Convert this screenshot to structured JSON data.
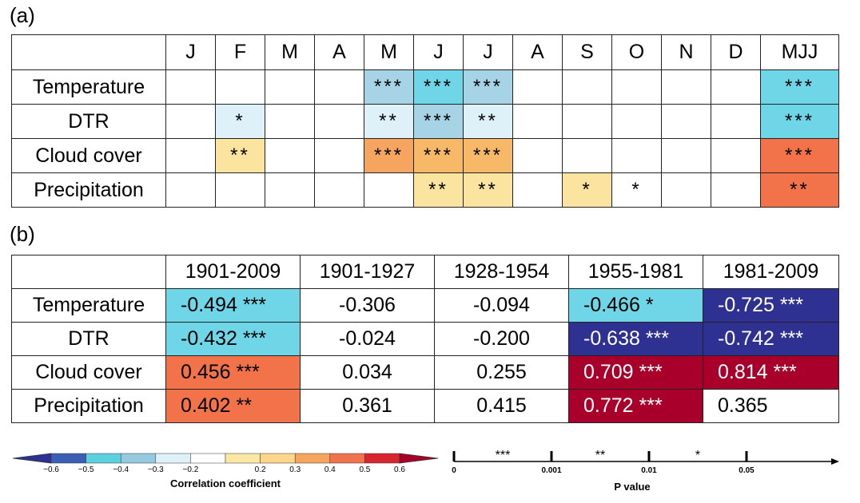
{
  "panel_a_label": "(a)",
  "panel_b_label": "(b)",
  "colors": {
    "neg_0.6": "#2e3192",
    "neg_0.5": "#3b5fb5",
    "neg_0.4": "#5bd1e0",
    "neg_0.3": "#96c9e0",
    "neg_0.2": "#dff1f8",
    "zero": "#ffffff",
    "pos_0.2": "#fbe7a3",
    "pos_0.3": "#fbd58a",
    "pos_0.4": "#f4a55e",
    "pos_0.5": "#f0734c",
    "pos_0.6": "#a8002a"
  },
  "chart_data": [
    {
      "type": "table",
      "panel": "(a)",
      "columns": [
        "J",
        "F",
        "M",
        "A",
        "M",
        "J",
        "J",
        "A",
        "S",
        "O",
        "N",
        "D",
        "MJJ"
      ],
      "rows": [
        {
          "label": "Temperature",
          "cells": [
            "",
            "",
            "",
            "",
            "***",
            "***",
            "***",
            "",
            "",
            "",
            "",
            "",
            "***"
          ],
          "colors": [
            "",
            "",
            "",
            "",
            "#a6d4e6",
            "#6ed6e6",
            "#a6d4e6",
            "",
            "",
            "",
            "",
            "",
            "#6ed6e6"
          ]
        },
        {
          "label": "DTR",
          "cells": [
            "",
            "*",
            "",
            "",
            "**",
            "***",
            "**",
            "",
            "",
            "",
            "",
            "",
            "***"
          ],
          "colors": [
            "",
            "#dff1f8",
            "",
            "",
            "#dff1f8",
            "#a6d4e6",
            "#dff1f8",
            "",
            "",
            "",
            "",
            "",
            "#6ed6e6"
          ]
        },
        {
          "label": "Cloud cover",
          "cells": [
            "",
            "**",
            "",
            "",
            "***",
            "***",
            "***",
            "",
            "",
            "",
            "",
            "",
            "***"
          ],
          "colors": [
            "",
            "#fbe3a0",
            "",
            "",
            "#f5a55f",
            "#f7b968",
            "#f7b968",
            "",
            "",
            "",
            "",
            "",
            "#f2734a"
          ]
        },
        {
          "label": "Precipitation",
          "cells": [
            "",
            "",
            "",
            "",
            "",
            "**",
            "**",
            "",
            "*",
            "*",
            "",
            "",
            "**"
          ],
          "colors": [
            "",
            "",
            "",
            "",
            "",
            "#fbe3a0",
            "#fbe3a0",
            "",
            "#fbe3a0",
            "",
            "",
            "",
            "#f2734a"
          ]
        }
      ]
    },
    {
      "type": "table",
      "panel": "(b)",
      "columns": [
        "1901-2009",
        "1901-1927",
        "1928-1954",
        "1955-1981",
        "1981-2009"
      ],
      "rows": [
        {
          "label": "Temperature",
          "cells": [
            "-0.494 ***",
            "-0.306",
            "-0.094",
            "-0.466 *",
            "-0.725 ***"
          ],
          "values": [
            -0.494,
            -0.306,
            -0.094,
            -0.466,
            -0.725
          ],
          "colors": [
            "#6ed6e6",
            "",
            "",
            "#6ed6e6",
            "#2e3192"
          ]
        },
        {
          "label": "DTR",
          "cells": [
            "-0.432 ***",
            "-0.024",
            "-0.200",
            "-0.638 ***",
            "-0.742 ***"
          ],
          "values": [
            -0.432,
            -0.024,
            -0.2,
            -0.638,
            -0.742
          ],
          "colors": [
            "#6ed6e6",
            "",
            "",
            "#2e3192",
            "#2e3192"
          ]
        },
        {
          "label": "Cloud cover",
          "cells": [
            "0.456 ***",
            "0.034",
            "0.255",
            "0.709 ***",
            "0.814 ***"
          ],
          "values": [
            0.456,
            0.034,
            0.255,
            0.709,
            0.814
          ],
          "colors": [
            "#f2734a",
            "",
            "",
            "#a8002a",
            "#a8002a"
          ]
        },
        {
          "label": "Precipitation",
          "cells": [
            "0.402 **",
            "0.361",
            "0.415",
            "0.772 ***",
            "0.365"
          ],
          "values": [
            0.402,
            0.361,
            0.415,
            0.772,
            0.365
          ],
          "colors": [
            "#f2734a",
            "",
            "",
            "#a8002a",
            ""
          ]
        }
      ]
    }
  ],
  "colorbar": {
    "title": "Correlation coefficient",
    "ticks": [
      "−0.6",
      "−0.5",
      "−0.4",
      "−0.3",
      "−0.2",
      "0.2",
      "0.3",
      "0.4",
      "0.5",
      "0.6"
    ],
    "segments": [
      "#2e3192",
      "#3b5fb5",
      "#5bd1e0",
      "#96c9e0",
      "#dff1f8",
      "#ffffff",
      "#fbe7a3",
      "#fbd58a",
      "#f4a55e",
      "#f0734c",
      "#d7262e",
      "#a8002a"
    ]
  },
  "pvalue_axis": {
    "title": "P value",
    "ticks": [
      "0",
      "0.001",
      "0.01",
      "0.05"
    ],
    "bands": [
      "***",
      "**",
      "*"
    ]
  }
}
